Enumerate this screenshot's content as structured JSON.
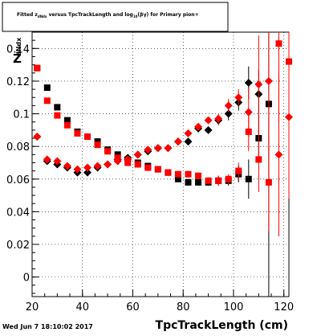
{
  "chart_data": {
    "type": "scatter",
    "title": "Fitted  z",
    "title_sub": "dNdx",
    "title_rest": " versus TpcTrackLength and log",
    "title_sub2": "10",
    "title_end": "(βγ) for Primary pion+",
    "ylabel": "Z",
    "ylabel_sub": "dNdx",
    "xlabel": "TpcTrackLength (cm)",
    "footer": "Wed Jun  7 18:10:02 2017",
    "xlim": [
      20,
      122
    ],
    "ylim": [
      -0.012,
      0.15
    ],
    "x_ticks": [
      20,
      40,
      60,
      80,
      100,
      120
    ],
    "y_ticks": [
      0,
      0.02,
      0.04,
      0.06,
      0.08,
      0.1,
      0.12,
      0.14
    ],
    "grid": true,
    "series": [
      {
        "marker": "square",
        "color": "#000000",
        "points": [
          {
            "x": 22,
            "y": 0.128,
            "err": 0.0
          },
          {
            "x": 26,
            "y": 0.116,
            "err": 0.0
          },
          {
            "x": 30,
            "y": 0.104,
            "err": 0.0
          },
          {
            "x": 34,
            "y": 0.096,
            "err": 0.0
          },
          {
            "x": 38,
            "y": 0.089,
            "err": 0.0
          },
          {
            "x": 42,
            "y": 0.086,
            "err": 0.0
          },
          {
            "x": 46,
            "y": 0.083,
            "err": 0.0
          },
          {
            "x": 50,
            "y": 0.078,
            "err": 0.0
          },
          {
            "x": 54,
            "y": 0.075,
            "err": 0.0
          },
          {
            "x": 58,
            "y": 0.072,
            "err": 0.0
          },
          {
            "x": 62,
            "y": 0.07,
            "err": 0.0
          },
          {
            "x": 66,
            "y": 0.068,
            "err": 0.0
          },
          {
            "x": 70,
            "y": 0.066,
            "err": 0.0
          },
          {
            "x": 74,
            "y": 0.064,
            "err": 0.0
          },
          {
            "x": 78,
            "y": 0.06,
            "err": 0.0
          },
          {
            "x": 82,
            "y": 0.058,
            "err": 0.002
          },
          {
            "x": 86,
            "y": 0.058,
            "err": 0.002
          },
          {
            "x": 90,
            "y": 0.058,
            "err": 0.002
          },
          {
            "x": 94,
            "y": 0.059,
            "err": 0.003
          },
          {
            "x": 98,
            "y": 0.059,
            "err": 0.003
          },
          {
            "x": 102,
            "y": 0.063,
            "err": 0.005
          },
          {
            "x": 106,
            "y": 0.06,
            "err": 0.012
          },
          {
            "x": 110,
            "y": 0.085,
            "err": 0.012
          },
          {
            "x": 114,
            "y": 0.106,
            "err": 0.3
          }
        ]
      },
      {
        "marker": "diamond",
        "color": "#000000",
        "points": [
          {
            "x": 22,
            "y": 0.086,
            "err": 0.0
          },
          {
            "x": 26,
            "y": 0.071,
            "err": 0.0
          },
          {
            "x": 30,
            "y": 0.069,
            "err": 0.0
          },
          {
            "x": 34,
            "y": 0.067,
            "err": 0.0
          },
          {
            "x": 38,
            "y": 0.064,
            "err": 0.0
          },
          {
            "x": 42,
            "y": 0.064,
            "err": 0.0
          },
          {
            "x": 46,
            "y": 0.067,
            "err": 0.0
          },
          {
            "x": 50,
            "y": 0.069,
            "err": 0.0
          },
          {
            "x": 54,
            "y": 0.072,
            "err": 0.0
          },
          {
            "x": 58,
            "y": 0.073,
            "err": 0.0
          },
          {
            "x": 62,
            "y": 0.075,
            "err": 0.0
          },
          {
            "x": 66,
            "y": 0.077,
            "err": 0.0
          },
          {
            "x": 70,
            "y": 0.079,
            "err": 0.0
          },
          {
            "x": 74,
            "y": 0.079,
            "err": 0.0
          },
          {
            "x": 78,
            "y": 0.083,
            "err": 0.0
          },
          {
            "x": 82,
            "y": 0.083,
            "err": 0.002
          },
          {
            "x": 86,
            "y": 0.091,
            "err": 0.002
          },
          {
            "x": 90,
            "y": 0.09,
            "err": 0.002
          },
          {
            "x": 94,
            "y": 0.096,
            "err": 0.003
          },
          {
            "x": 98,
            "y": 0.1,
            "err": 0.004
          },
          {
            "x": 102,
            "y": 0.107,
            "err": 0.005
          },
          {
            "x": 106,
            "y": 0.119,
            "err": 0.01
          },
          {
            "x": 110,
            "y": 0.112,
            "err": 0.015
          }
        ]
      },
      {
        "marker": "square",
        "color": "#ff0000",
        "points": [
          {
            "x": 22,
            "y": 0.128,
            "err": 0.0
          },
          {
            "x": 26,
            "y": 0.108,
            "err": 0.0
          },
          {
            "x": 30,
            "y": 0.099,
            "err": 0.0
          },
          {
            "x": 34,
            "y": 0.093,
            "err": 0.0
          },
          {
            "x": 38,
            "y": 0.088,
            "err": 0.0
          },
          {
            "x": 42,
            "y": 0.086,
            "err": 0.0
          },
          {
            "x": 46,
            "y": 0.081,
            "err": 0.0
          },
          {
            "x": 50,
            "y": 0.077,
            "err": 0.0
          },
          {
            "x": 54,
            "y": 0.073,
            "err": 0.0
          },
          {
            "x": 58,
            "y": 0.07,
            "err": 0.0
          },
          {
            "x": 62,
            "y": 0.069,
            "err": 0.0
          },
          {
            "x": 66,
            "y": 0.067,
            "err": 0.0
          },
          {
            "x": 70,
            "y": 0.066,
            "err": 0.0
          },
          {
            "x": 74,
            "y": 0.064,
            "err": 0.0
          },
          {
            "x": 78,
            "y": 0.063,
            "err": 0.0
          },
          {
            "x": 82,
            "y": 0.063,
            "err": 0.002
          },
          {
            "x": 86,
            "y": 0.062,
            "err": 0.002
          },
          {
            "x": 90,
            "y": 0.059,
            "err": 0.002
          },
          {
            "x": 94,
            "y": 0.059,
            "err": 0.003
          },
          {
            "x": 98,
            "y": 0.06,
            "err": 0.003
          },
          {
            "x": 102,
            "y": 0.065,
            "err": 0.005
          },
          {
            "x": 106,
            "y": 0.089,
            "err": 0.012
          },
          {
            "x": 110,
            "y": 0.072,
            "err": 0.02
          },
          {
            "x": 114,
            "y": 0.058,
            "err": 0.03
          },
          {
            "x": 118,
            "y": 0.143,
            "err": 0.05
          },
          {
            "x": 122,
            "y": 0.132,
            "err": 0.05
          }
        ]
      },
      {
        "marker": "diamond",
        "color": "#ff0000",
        "points": [
          {
            "x": 22,
            "y": 0.086,
            "err": 0.0
          },
          {
            "x": 26,
            "y": 0.072,
            "err": 0.0
          },
          {
            "x": 30,
            "y": 0.071,
            "err": 0.0
          },
          {
            "x": 34,
            "y": 0.068,
            "err": 0.0
          },
          {
            "x": 38,
            "y": 0.066,
            "err": 0.0
          },
          {
            "x": 42,
            "y": 0.067,
            "err": 0.0
          },
          {
            "x": 46,
            "y": 0.068,
            "err": 0.0
          },
          {
            "x": 50,
            "y": 0.069,
            "err": 0.0
          },
          {
            "x": 54,
            "y": 0.071,
            "err": 0.0
          },
          {
            "x": 58,
            "y": 0.072,
            "err": 0.0
          },
          {
            "x": 62,
            "y": 0.075,
            "err": 0.0
          },
          {
            "x": 66,
            "y": 0.078,
            "err": 0.0
          },
          {
            "x": 70,
            "y": 0.079,
            "err": 0.0
          },
          {
            "x": 74,
            "y": 0.079,
            "err": 0.0
          },
          {
            "x": 78,
            "y": 0.083,
            "err": 0.0
          },
          {
            "x": 82,
            "y": 0.088,
            "err": 0.002
          },
          {
            "x": 86,
            "y": 0.092,
            "err": 0.002
          },
          {
            "x": 90,
            "y": 0.096,
            "err": 0.002
          },
          {
            "x": 94,
            "y": 0.097,
            "err": 0.003
          },
          {
            "x": 98,
            "y": 0.105,
            "err": 0.004
          },
          {
            "x": 102,
            "y": 0.11,
            "err": 0.005
          },
          {
            "x": 106,
            "y": 0.101,
            "err": 0.015
          },
          {
            "x": 110,
            "y": 0.118,
            "err": 0.03
          },
          {
            "x": 114,
            "y": 0.12,
            "err": 0.05
          },
          {
            "x": 118,
            "y": 0.075,
            "err": 0.05
          },
          {
            "x": 122,
            "y": 0.098,
            "err": 0.05
          }
        ]
      }
    ]
  }
}
